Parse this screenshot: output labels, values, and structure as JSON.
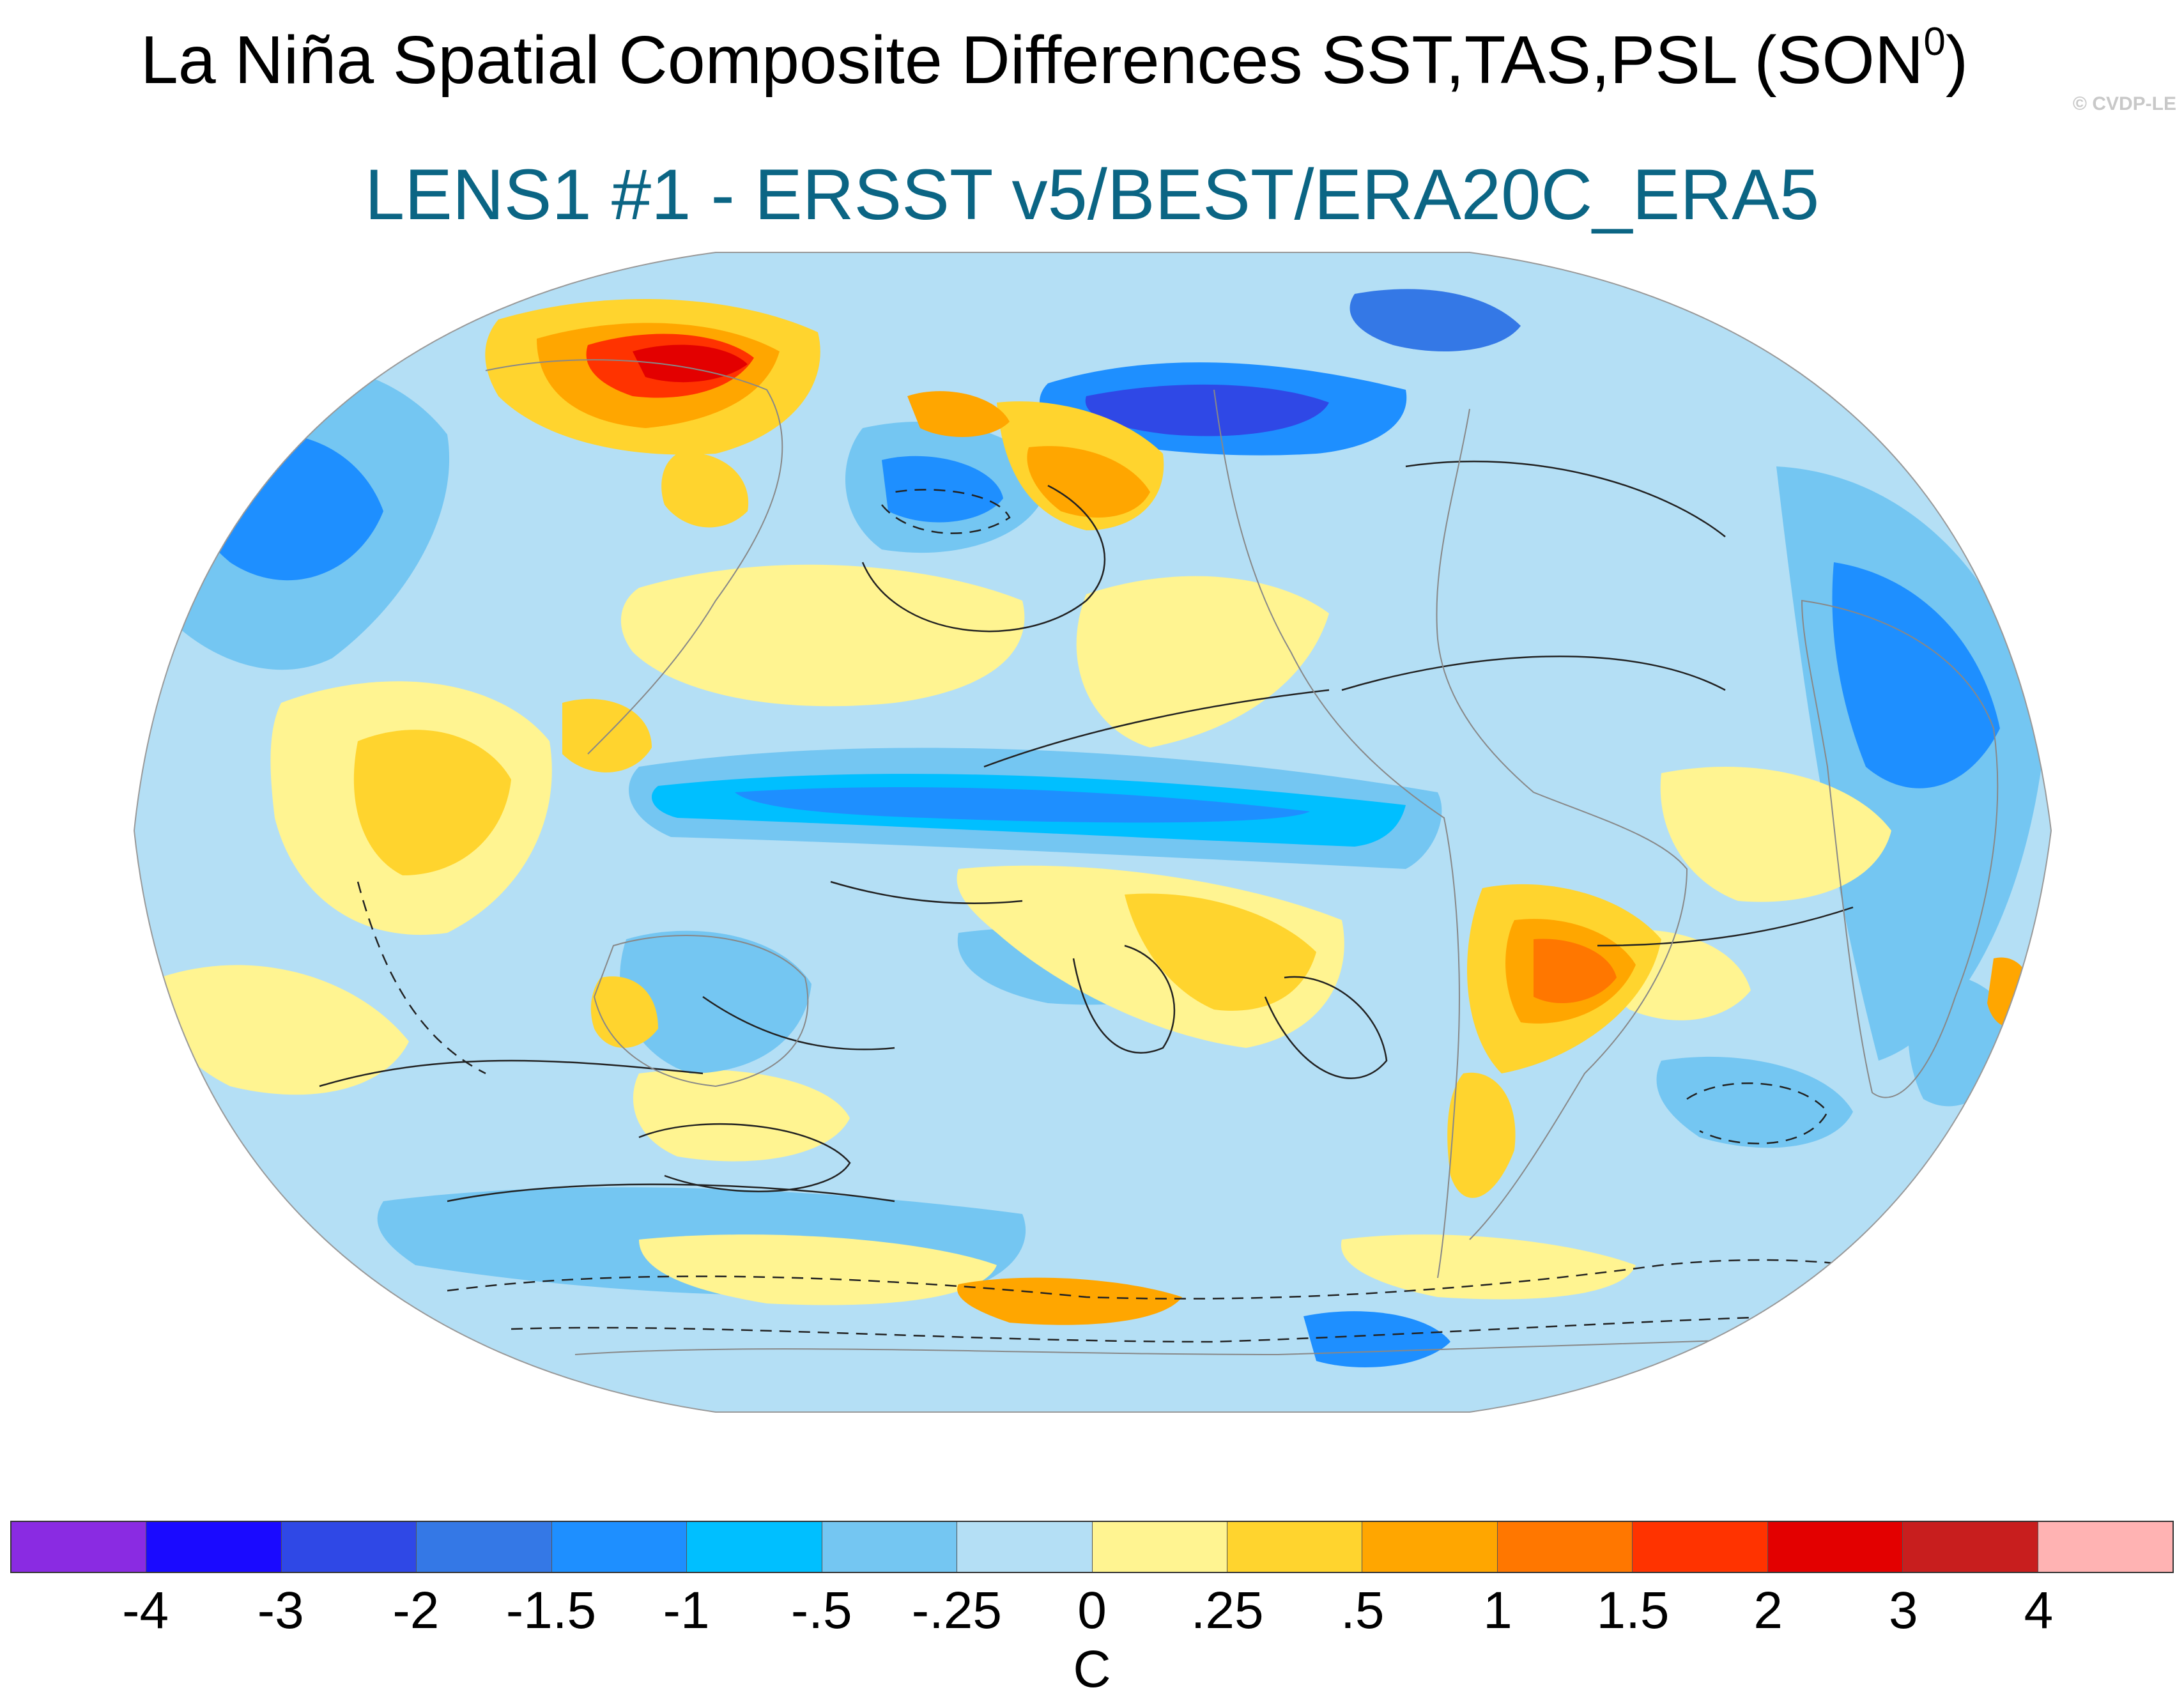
{
  "title": {
    "text": "La Niña Spatial Composite Differences SST,TAS,PSL (SON",
    "superscript": "0",
    "closing": ")"
  },
  "watermark": "© CVDP-LE",
  "subtitle": "LENS1 #1 - ERSST v5/BEST/ERA20C_ERA5",
  "colorbar": {
    "labels": [
      "-4",
      "-3",
      "-2",
      "-1.5",
      "-1",
      "-.5",
      "-.25",
      "0",
      ".25",
      ".5",
      "1",
      "1.5",
      "2",
      "3",
      "4"
    ],
    "colors": [
      "#8a2be2",
      "#1a0aff",
      "#2f48e6",
      "#3478e6",
      "#1e8fff",
      "#00bfff",
      "#74c6f2",
      "#b4dff5",
      "#fff491",
      "#ffd42e",
      "#ffa600",
      "#ff7700",
      "#ff3300",
      "#e30000",
      "#c81e1e",
      "#ffb3b3"
    ],
    "units": "C"
  },
  "map": {
    "projection": "Robinson",
    "ocean_color": "#b4dff5",
    "land_outline_color": "#888888",
    "contour_color": "#222222"
  }
}
